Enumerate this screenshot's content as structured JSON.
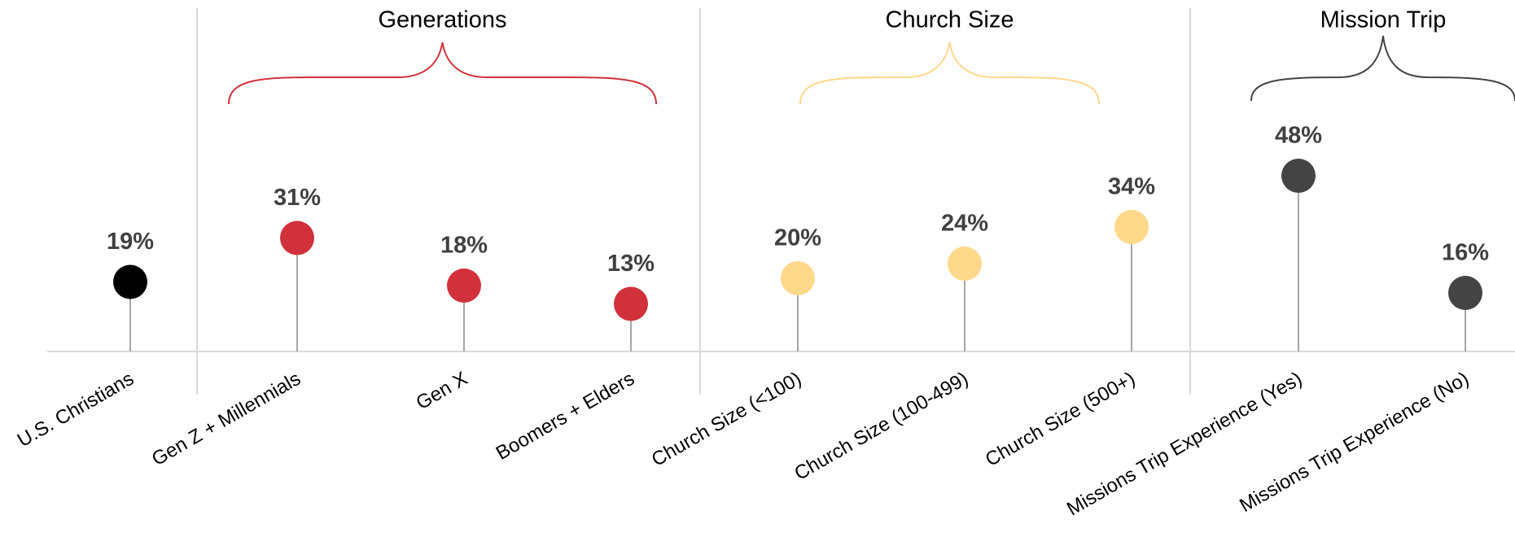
{
  "chart_data": {
    "type": "lollipop",
    "value_format": "percent",
    "ylim": [
      0,
      60
    ],
    "categories": [
      "U.S. Christians",
      "Gen Z + Millennials",
      "Gen X",
      "Boomers + Elders",
      "Church Size (<100)",
      "Church Size (100-499)",
      "Church Size (500+)",
      "Missions Trip Experience (Yes)",
      "Missions Trip Experience (No)"
    ],
    "values": [
      19,
      31,
      18,
      13,
      20,
      24,
      34,
      48,
      16
    ],
    "value_labels": [
      "19%",
      "31%",
      "18%",
      "13%",
      "20%",
      "24%",
      "34%",
      "48%",
      "16%"
    ],
    "point_colors": [
      "#000000",
      "#D0313B",
      "#D0313B",
      "#D0313B",
      "#FFD88A",
      "#FFD88A",
      "#FFD88A",
      "#444444",
      "#444444"
    ],
    "groups": [
      {
        "title": "Generations",
        "members": [
          1,
          2,
          3
        ],
        "brace_color": "#D0313B"
      },
      {
        "title": "Church Size",
        "members": [
          4,
          5,
          6
        ],
        "brace_color": "#FFD88A"
      },
      {
        "title": "Mission Trip",
        "members": [
          7,
          8
        ],
        "brace_color": "#444444"
      }
    ],
    "colors": {
      "stem": "#A6A6A6",
      "baseline": "#D9D9D9",
      "separator": "#D9D9D9",
      "value_text": "#404040"
    }
  }
}
